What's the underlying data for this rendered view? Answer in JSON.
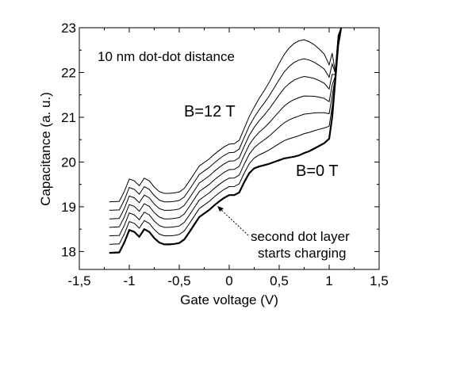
{
  "chart_data": {
    "type": "line",
    "title": "",
    "xlabel": "Gate voltage (V)",
    "ylabel": "Capacitance (a. u.)",
    "xlim": [
      -1.5,
      1.5
    ],
    "ylim": [
      17.6,
      23
    ],
    "x_ticks": [
      "-1,5",
      "-1",
      "-0,5",
      "0",
      "0,5",
      "1",
      "1,5"
    ],
    "y_ticks": [
      "18",
      "19",
      "20",
      "21",
      "22",
      "23"
    ],
    "grid": false,
    "legend": "none",
    "annotations": {
      "subtitle": "10 nm dot-dot distance",
      "top_label": "B=12 T",
      "bottom_label": "B=0 T",
      "arrow_label_line1": "second dot layer",
      "arrow_label_line2": "starts charging"
    },
    "base_curve": {
      "x": [
        -1.2,
        -1.1,
        -1.05,
        -1.0,
        -0.95,
        -0.9,
        -0.85,
        -0.8,
        -0.75,
        -0.7,
        -0.65,
        -0.6,
        -0.55,
        -0.5,
        -0.45,
        -0.4,
        -0.35,
        -0.3,
        -0.25,
        -0.2,
        -0.15,
        -0.1,
        -0.05,
        0.0,
        0.05,
        0.1,
        0.15,
        0.2,
        0.25,
        0.3,
        0.35,
        0.4,
        0.45,
        0.5,
        0.55,
        0.6,
        0.65,
        0.7,
        0.75,
        0.8,
        0.85,
        0.9,
        0.95,
        1.0,
        1.03,
        1.06,
        1.09,
        1.12
      ],
      "y": [
        17.97,
        17.98,
        18.2,
        18.48,
        18.44,
        18.33,
        18.5,
        18.44,
        18.3,
        18.2,
        18.16,
        18.16,
        18.17,
        18.19,
        18.27,
        18.43,
        18.6,
        18.77,
        18.85,
        18.93,
        19.03,
        19.12,
        19.2,
        19.26,
        19.26,
        19.32,
        19.55,
        19.75,
        19.86,
        19.9,
        19.93,
        19.96,
        20.0,
        20.04,
        20.08,
        20.1,
        20.12,
        20.15,
        20.2,
        20.24,
        20.3,
        20.36,
        20.42,
        20.52,
        21.0,
        21.8,
        22.6,
        23.0
      ]
    },
    "series": [
      {
        "offset": 0.0,
        "bump": 0.0
      },
      {
        "offset": 0.19,
        "bump": 0.25
      },
      {
        "offset": 0.38,
        "bump": 0.5
      },
      {
        "offset": 0.57,
        "bump": 0.72
      },
      {
        "offset": 0.76,
        "bump": 0.97
      },
      {
        "offset": 0.95,
        "bump": 1.18
      },
      {
        "offset": 1.14,
        "bump": 1.42
      }
    ],
    "colors": {
      "line": "#000000",
      "axis": "#000000",
      "background": "#ffffff"
    }
  }
}
